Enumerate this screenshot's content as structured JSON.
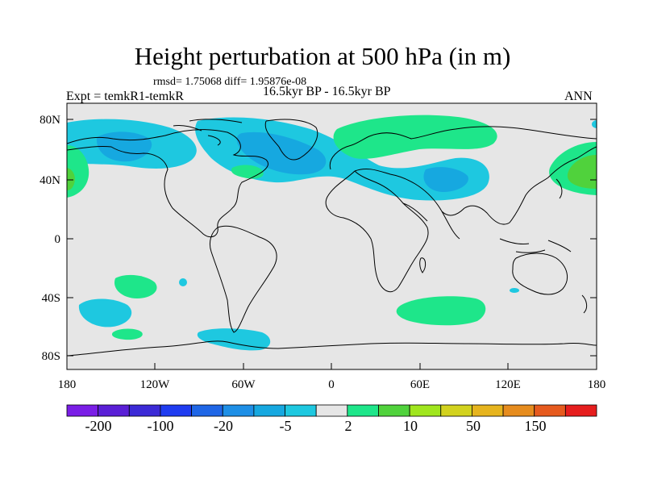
{
  "title": "Height perturbation at 500 hPa (in m)",
  "stats": "rmsd= 1.75068 diff= 1.95876e-08",
  "experiment": "Expt = temkR1-temkR",
  "period": "16.5kyr BP - 16.5kyr BP",
  "season": "ANN",
  "lat_labels": [
    "80N",
    "40N",
    "0",
    "40S",
    "80S"
  ],
  "lon_labels": [
    "180",
    "120W",
    "60W",
    "0",
    "60E",
    "120E",
    "180"
  ],
  "colorbar": {
    "colors": [
      "#7a1ee6",
      "#5a1fd6",
      "#3c2ad6",
      "#1f3cf0",
      "#1f66e6",
      "#1e8fe6",
      "#16a8e0",
      "#1ec8e0",
      "#e6e6e6",
      "#1ee68a",
      "#50d23c",
      "#a0e61e",
      "#d2d21e",
      "#e6b41e",
      "#e68c1e",
      "#e65a1e",
      "#e61e1e"
    ],
    "labels": [
      "-200",
      "-100",
      "-20",
      "-5",
      "2",
      "10",
      "50",
      "150"
    ]
  },
  "colors": {
    "background": "#e6e6e6",
    "negative_light": "#1ec8e0",
    "negative_mid": "#16a8e0",
    "positive_light": "#1ee68a",
    "positive_mid": "#50d23c"
  }
}
